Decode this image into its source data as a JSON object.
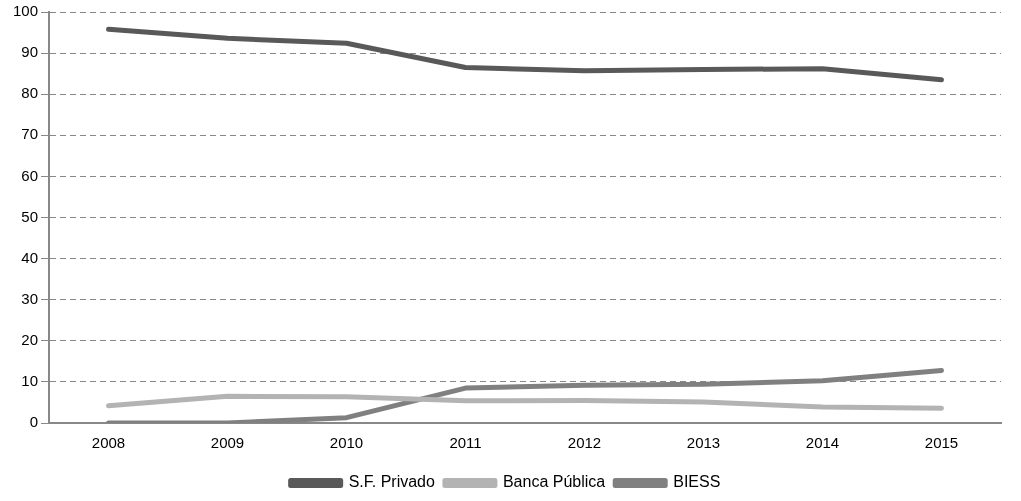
{
  "chart_data": {
    "type": "line",
    "categories": [
      "2008",
      "2009",
      "2010",
      "2011",
      "2012",
      "2013",
      "2014",
      "2015"
    ],
    "series": [
      {
        "name": "S.F. Privado",
        "color": "#595959",
        "values": [
          95.8,
          93.6,
          92.4,
          86.5,
          85.7,
          86.0,
          86.2,
          83.5
        ]
      },
      {
        "name": "Banca Pública",
        "color": "#b3b3b3",
        "values": [
          4.2,
          6.5,
          6.4,
          5.4,
          5.5,
          5.1,
          3.9,
          3.6
        ]
      },
      {
        "name": "BIESS",
        "color": "#808080",
        "values": [
          0,
          0,
          1.3,
          8.5,
          9.2,
          9.4,
          10.3,
          12.8
        ]
      }
    ],
    "ylim": [
      0,
      100
    ],
    "yticks": [
      0,
      10,
      20,
      30,
      40,
      50,
      60,
      70,
      80,
      90,
      100
    ],
    "grid": "y",
    "legend": "bottom",
    "marker": "none",
    "line_style": "solid"
  }
}
